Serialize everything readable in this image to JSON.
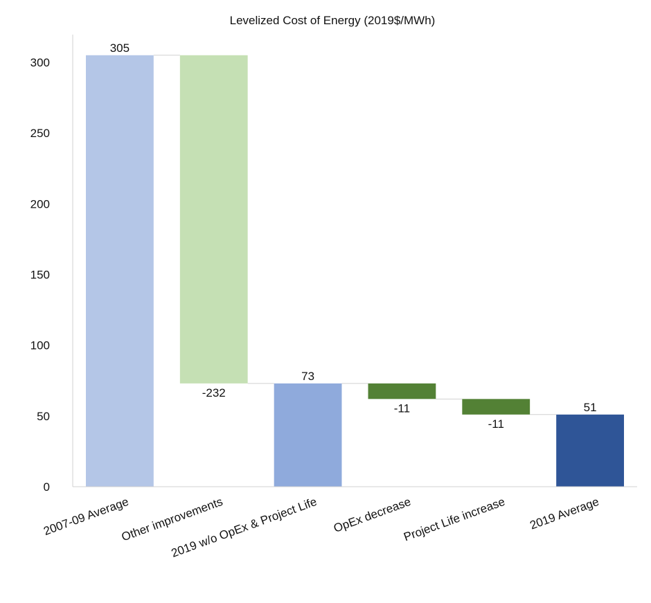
{
  "chart_data": {
    "type": "waterfall",
    "title": "Levelized Cost of Energy (2019$/MWh)",
    "xlabel": "",
    "ylabel": "",
    "ylim": [
      0,
      300
    ],
    "yticks": [
      0,
      50,
      100,
      150,
      200,
      250,
      300
    ],
    "grid": false,
    "categories": [
      "2007-09 Average",
      "Other improvements",
      "2019 w/o OpEx & Project Life",
      "OpEx decrease",
      "Project Life increase",
      "2019 Average"
    ],
    "values": [
      305,
      -232,
      73,
      -11,
      -11,
      51
    ],
    "labels": [
      "305",
      "-232",
      "73",
      "-11",
      "-11",
      "51"
    ],
    "bar_kind": [
      "total",
      "delta",
      "total",
      "delta",
      "delta",
      "total"
    ],
    "colors": [
      "#b4c6e7",
      "#c5e0b4",
      "#8faadc",
      "#538135",
      "#538135",
      "#2f5597"
    ]
  }
}
